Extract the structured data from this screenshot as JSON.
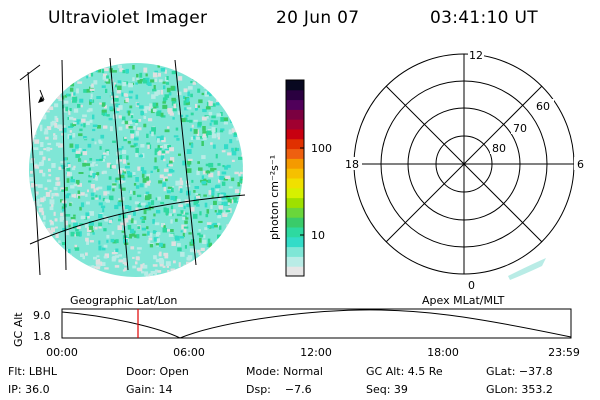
{
  "header": {
    "instrument": "Ultraviolet Imager",
    "date": "20 Jun 07",
    "time": "03:41:10 UT"
  },
  "colorbar": {
    "label": "photon cm⁻²s⁻¹",
    "ticks": [
      "100",
      "10"
    ],
    "colors": [
      "#e6e6e6",
      "#b9ece6",
      "#7fe6d6",
      "#33dcc8",
      "#2ed9a0",
      "#3acb6a",
      "#6ad63b",
      "#9ee000",
      "#d6f000",
      "#f0e000",
      "#f6c000",
      "#f49a00",
      "#ee6010",
      "#e03000",
      "#c80010",
      "#a00030",
      "#7a0040",
      "#50005a",
      "#2a0040",
      "#080820"
    ]
  },
  "polar_plot": {
    "clock_labels": [
      "12",
      "18",
      "6",
      "0"
    ],
    "lat_labels": [
      "60",
      "70",
      "80"
    ]
  },
  "map": {
    "fill_color": "#7fe6d6",
    "speckle_colors": [
      "#33dcc8",
      "#2ed9a0",
      "#3acb6a",
      "#b9ece6",
      "#e0e0e0"
    ]
  },
  "timeline": {
    "left_title": "Geographic Lat/Lon",
    "right_title": "Apex MLat/MLT",
    "y_label": "GC Alt",
    "y_ticks": [
      "9.0",
      "1.8"
    ],
    "x_ticks": [
      "00:00",
      "06:00",
      "12:00",
      "18:00",
      "23:59"
    ],
    "marker_color": "#e00000"
  },
  "info": {
    "row1": [
      "Flt: LBHL",
      "Door: Open",
      "Mode: Normal",
      "GC Alt: 4.5 Re",
      "GLat: −37.8"
    ],
    "row2": [
      "IP: 36.0",
      "Gain: 14",
      "Dsp:    −7.6",
      "Seq: 39",
      "GLon: 353.2"
    ]
  }
}
